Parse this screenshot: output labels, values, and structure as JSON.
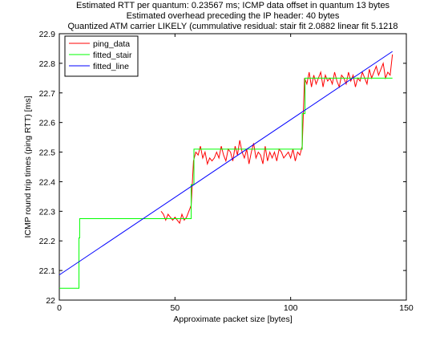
{
  "chart_data": {
    "type": "line",
    "title": [
      "Estimated RTT per quantum: 0.23567 ms; ICMP data offset in quantum 13 bytes",
      "Estimated overhead preceding the IP header: 40 bytes",
      "Quantized ATM carrier LIKELY (cummulative residual: stair fit 2.0882 linear fit 5.1218"
    ],
    "xlabel": "Approximate packet size [bytes]",
    "ylabel": "ICMP round trip times (ping RTT) [ms]",
    "xlim": [
      0,
      150
    ],
    "ylim": [
      22.0,
      22.9
    ],
    "xticks": [
      0,
      50,
      100,
      150
    ],
    "xtick_labels": [
      "0",
      "50",
      "100",
      "150"
    ],
    "yticks": [
      22.0,
      22.1,
      22.2,
      22.3,
      22.4,
      22.5,
      22.6,
      22.7,
      22.8,
      22.9
    ],
    "ytick_labels": [
      "22",
      "22.1",
      "22.2",
      "22.3",
      "22.4",
      "22.5",
      "22.6",
      "22.7",
      "22.8",
      "22.9"
    ],
    "grid": false,
    "legend_position": "top-left",
    "series": [
      {
        "name": "ping_data",
        "color": "#ff0000",
        "x": [
          44,
          45,
          46,
          47,
          48,
          49,
          50,
          51,
          52,
          53,
          54,
          55,
          56,
          57,
          58,
          59,
          60,
          61,
          62,
          63,
          64,
          65,
          66,
          67,
          68,
          69,
          70,
          71,
          72,
          73,
          74,
          75,
          76,
          77,
          78,
          79,
          80,
          81,
          82,
          83,
          84,
          85,
          86,
          87,
          88,
          89,
          90,
          91,
          92,
          93,
          94,
          95,
          96,
          97,
          98,
          99,
          100,
          101,
          102,
          103,
          104,
          105,
          106,
          107,
          108,
          109,
          110,
          111,
          112,
          113,
          114,
          115,
          116,
          117,
          118,
          119,
          120,
          121,
          122,
          123,
          124,
          125,
          126,
          127,
          128,
          129,
          130,
          131,
          132,
          133,
          134,
          135,
          136,
          137,
          138,
          139,
          140,
          141,
          142,
          143,
          144
        ],
        "y": [
          22.3,
          22.29,
          22.27,
          22.29,
          22.28,
          22.27,
          22.28,
          22.27,
          22.26,
          22.29,
          22.27,
          22.28,
          22.3,
          22.32,
          22.47,
          22.5,
          22.49,
          22.52,
          22.48,
          22.5,
          22.46,
          22.48,
          22.47,
          22.48,
          22.5,
          22.48,
          22.52,
          22.49,
          22.47,
          22.51,
          22.5,
          22.47,
          22.52,
          22.49,
          22.54,
          22.5,
          22.48,
          22.51,
          22.46,
          22.5,
          22.53,
          22.48,
          22.5,
          22.49,
          22.46,
          22.52,
          22.47,
          22.5,
          22.48,
          22.5,
          22.47,
          22.51,
          22.5,
          22.48,
          22.49,
          22.5,
          22.48,
          22.51,
          22.47,
          22.5,
          22.49,
          22.52,
          22.75,
          22.73,
          22.77,
          22.72,
          22.76,
          22.73,
          22.75,
          22.77,
          22.72,
          22.76,
          22.74,
          22.75,
          22.73,
          22.77,
          22.74,
          22.72,
          22.76,
          22.75,
          22.73,
          22.77,
          22.74,
          22.76,
          22.72,
          22.75,
          22.74,
          22.77,
          22.75,
          22.73,
          22.78,
          22.75,
          22.77,
          22.79,
          22.76,
          22.78,
          22.8,
          22.75,
          22.77,
          22.76,
          22.83
        ]
      },
      {
        "name": "fitted_stair",
        "color": "#00ff00",
        "x": [
          0,
          8.5,
          8.5,
          8.8,
          8.8,
          57,
          57,
          58.2,
          58.2,
          105,
          105,
          106.2,
          106.2,
          144
        ],
        "y": [
          22.04,
          22.04,
          22.21,
          22.21,
          22.275,
          22.275,
          22.39,
          22.39,
          22.51,
          22.51,
          22.63,
          22.63,
          22.75,
          22.75
        ]
      },
      {
        "name": "fitted_line",
        "color": "#0000ff",
        "x": [
          0,
          144
        ],
        "y": [
          22.085,
          22.84
        ]
      }
    ]
  }
}
